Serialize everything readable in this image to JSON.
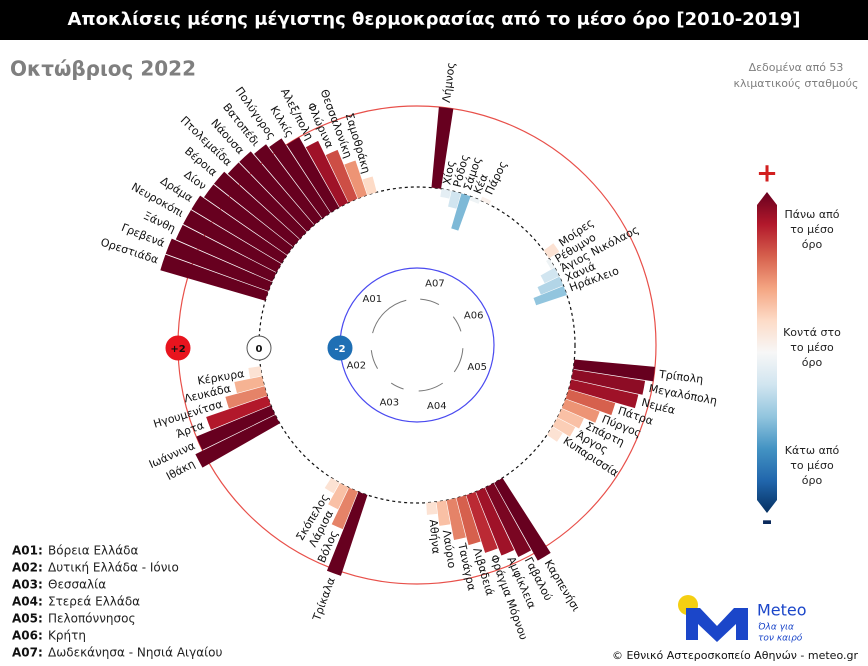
{
  "chart_data": {
    "type": "radial_bar",
    "title": "Αποκλίσεις μέσης μέγιστης θερμοκρασίας από το μέσο όρο [2010-2019]",
    "subtitle": "Οκτώβριος 2022",
    "note": [
      "Δεδομένα από 53",
      "κλιματικούς σταθμούς"
    ],
    "rticks": [
      {
        "value": 2,
        "label": "+2"
      },
      0,
      -2
    ],
    "colorscale": [
      "#67001f",
      "#b2182b",
      "#d6604d",
      "#f4a582",
      "#fddbc7",
      "#f7f7f7",
      "#d1e5f0",
      "#92c5de",
      "#4393c3",
      "#2166ac",
      "#053061"
    ],
    "colorbar": {
      "top_symbol": "+",
      "bottom_symbol": "-",
      "labels": [
        [
          "Πάνω από",
          "το μέσο",
          "όρο"
        ],
        [
          "Κοντά στο",
          "το μέσο",
          "όρο"
        ],
        [
          "Κάτω από",
          "το μέσο",
          "όρο"
        ]
      ]
    },
    "groups": [
      {
        "code": "A01",
        "legend_code": "A01:",
        "name": "Βόρεια Ελλάδα",
        "stations": [
          {
            "name": "Ορεστιάδα",
            "value": 2.7
          },
          {
            "name": "Γρεβενά",
            "value": 2.7
          },
          {
            "name": "Ξάνθη",
            "value": 2.6
          },
          {
            "name": "Νευροκόπι",
            "value": 2.6
          },
          {
            "name": "Δράμα",
            "value": 2.6
          },
          {
            "name": "Δίον",
            "value": 2.5
          },
          {
            "name": "Βέροια",
            "value": 2.5
          },
          {
            "name": "Πτολεμαΐδα",
            "value": 2.4
          },
          {
            "name": "Νάουσα",
            "value": 2.4
          },
          {
            "name": "Βατοπέδι",
            "value": 2.3
          },
          {
            "name": "Πολύγυρος",
            "value": 2.2
          },
          {
            "name": "Κιλκίς",
            "value": 2.0
          },
          {
            "name": "Αλεξ/πολη",
            "value": 1.7
          },
          {
            "name": "Φλώρινα",
            "value": 1.3
          },
          {
            "name": "Θεσσαλονίκη",
            "value": 0.9
          },
          {
            "name": "Σαμοθράκη",
            "value": 0.4
          }
        ]
      },
      {
        "code": "A02",
        "legend_code": "A02:",
        "name": "Δυτική Ελλάδα - Ιόνιο",
        "stations": [
          {
            "name": "Ιθάκη",
            "value": 2.2
          },
          {
            "name": "Ιωάννινα",
            "value": 2.0
          },
          {
            "name": "Άρτα",
            "value": 1.6
          },
          {
            "name": "Ηγουμενίτσα",
            "value": 1.0
          },
          {
            "name": "Λευκάδα",
            "value": 0.7
          },
          {
            "name": "Κέρκυρα",
            "value": 0.3
          }
        ]
      },
      {
        "code": "A03",
        "legend_code": "A03:",
        "name": "Θεσσαλία",
        "stations": [
          {
            "name": "Τρίκαλα",
            "value": 2.1
          },
          {
            "name": "Βόλος",
            "value": 1.0
          },
          {
            "name": "Λάρισα",
            "value": 0.6
          },
          {
            "name": "Σκόπελος",
            "value": 0.3
          }
        ]
      },
      {
        "code": "A04",
        "legend_code": "A04:",
        "name": "Στερεά Ελλάδα",
        "stations": [
          {
            "name": "Καρπενήσι",
            "value": 2.2
          },
          {
            "name": "Γαβαλού",
            "value": 1.9
          },
          {
            "name": "Αμφίκλεια",
            "value": 1.7
          },
          {
            "name": "Φράγμα Μόρνου",
            "value": 1.5
          },
          {
            "name": "Λιβαδειά",
            "value": 1.2
          },
          {
            "name": "Τανάγρα",
            "value": 1.0
          },
          {
            "name": "Λαύριο",
            "value": 0.6
          },
          {
            "name": "Αθήνα",
            "value": 0.3
          }
        ]
      },
      {
        "code": "A05",
        "legend_code": "A05:",
        "name": "Πελοπόννησος",
        "stations": [
          {
            "name": "Τρίπολη",
            "value": 2.0
          },
          {
            "name": "Μεγαλόπολη",
            "value": 1.8
          },
          {
            "name": "Νεμέα",
            "value": 1.7
          },
          {
            "name": "Πάτρα",
            "value": 1.2
          },
          {
            "name": "Πύργος",
            "value": 0.9
          },
          {
            "name": "Σπάρτη",
            "value": 0.6
          },
          {
            "name": "Άργος",
            "value": 0.5
          },
          {
            "name": "Κυπαρισσία",
            "value": 0.3
          }
        ]
      },
      {
        "code": "A06",
        "legend_code": "A06:",
        "name": "Κρήτη",
        "stations": [
          {
            "name": "Μοίρες",
            "value": 0.3
          },
          {
            "name": "Ρέθυμνο",
            "value": -0.1
          },
          {
            "name": "Άγιος Νικόλαος",
            "value": -0.4
          },
          {
            "name": "Χανιά",
            "value": -0.6
          },
          {
            "name": "Ηράκλειο",
            "value": -0.8
          }
        ]
      },
      {
        "code": "A07",
        "legend_code": "A07:",
        "name": "Δωδεκάνησα - Νησιά Αιγαίου",
        "stations": [
          {
            "name": "Λήμνος",
            "value": 2.0
          },
          {
            "name": "Χίος",
            "value": -0.2
          },
          {
            "name": "Ρόδος",
            "value": -0.4
          },
          {
            "name": "Σάμος",
            "value": -0.9
          },
          {
            "name": "Κέα",
            "value": -0.1
          },
          {
            "name": "Πάρος",
            "value": 0.1
          }
        ]
      }
    ],
    "logo": {
      "brand": "Meteo",
      "tagline": [
        "Όλα για",
        "τον καιρό"
      ]
    },
    "credit": "© Εθνικό Αστεροσκοπείο Αθηνών - meteo.gr"
  }
}
